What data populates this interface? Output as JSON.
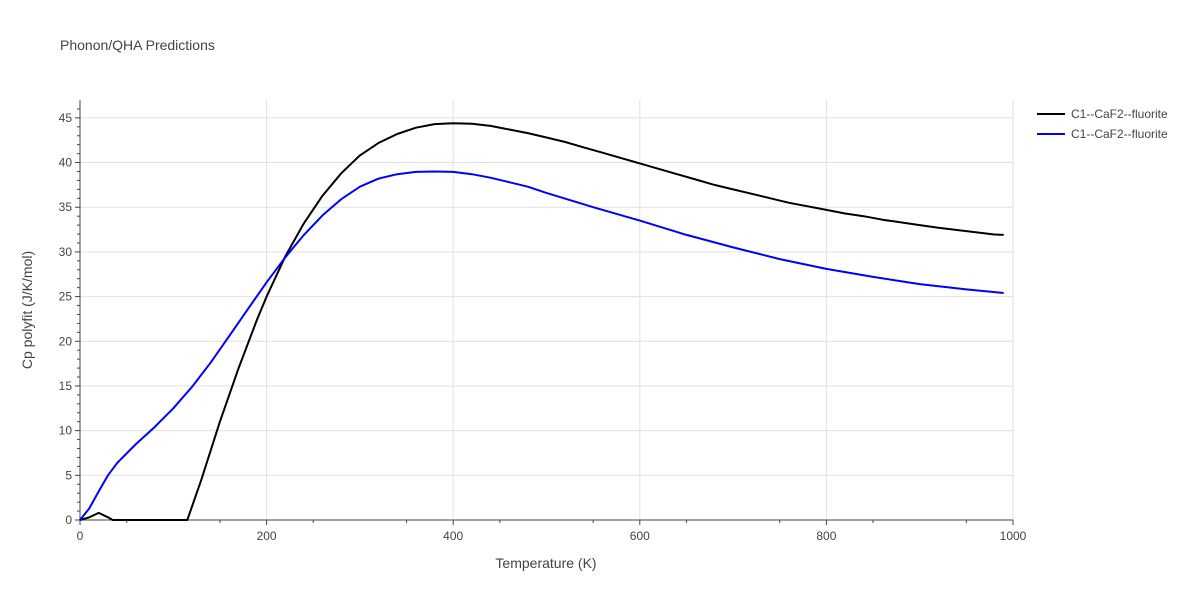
{
  "chart_data": {
    "type": "line",
    "title": "Phonon/QHA Predictions",
    "xlabel": "Temperature (K)",
    "ylabel": "Cp polyfit (J/K/mol)",
    "xlim": [
      0,
      1000
    ],
    "ylim": [
      0,
      47
    ],
    "xticks": [
      0,
      200,
      400,
      600,
      800,
      1000
    ],
    "yticks": [
      0,
      5,
      10,
      15,
      20,
      25,
      30,
      35,
      40,
      45
    ],
    "grid": true,
    "legend_position": "top-right",
    "series": [
      {
        "name": "C1--CaF2--fluorite",
        "color": "#000000",
        "x": [
          0,
          10,
          20,
          30,
          35,
          115,
          130,
          150,
          170,
          190,
          200,
          220,
          240,
          260,
          280,
          300,
          320,
          340,
          360,
          380,
          400,
          420,
          440,
          460,
          480,
          500,
          520,
          540,
          560,
          580,
          600,
          620,
          640,
          660,
          680,
          700,
          720,
          740,
          760,
          780,
          800,
          820,
          840,
          860,
          880,
          900,
          920,
          940,
          960,
          980,
          990
        ],
        "y": [
          0,
          0.3,
          0.8,
          0.3,
          0,
          0,
          4.5,
          11,
          17,
          22.5,
          25,
          29.5,
          33.2,
          36.3,
          38.8,
          40.8,
          42.2,
          43.2,
          43.9,
          44.3,
          44.4,
          44.35,
          44.1,
          43.7,
          43.3,
          42.8,
          42.3,
          41.7,
          41.1,
          40.5,
          39.9,
          39.3,
          38.7,
          38.1,
          37.5,
          37,
          36.5,
          36,
          35.5,
          35.1,
          34.7,
          34.3,
          34,
          33.6,
          33.3,
          33,
          32.7,
          32.45,
          32.2,
          31.95,
          31.9
        ]
      },
      {
        "name": "C1--CaF2--fluorite",
        "color": "#0000ff",
        "x": [
          0,
          10,
          20,
          30,
          40,
          60,
          80,
          100,
          120,
          140,
          160,
          180,
          200,
          220,
          240,
          260,
          280,
          300,
          320,
          340,
          360,
          380,
          400,
          420,
          440,
          460,
          480,
          500,
          550,
          600,
          650,
          700,
          750,
          800,
          850,
          900,
          950,
          990
        ],
        "y": [
          0,
          1.3,
          3.2,
          5,
          6.4,
          8.5,
          10.4,
          12.5,
          14.9,
          17.6,
          20.6,
          23.6,
          26.6,
          29.4,
          31.9,
          34.1,
          35.9,
          37.3,
          38.2,
          38.7,
          38.95,
          39,
          38.95,
          38.7,
          38.3,
          37.8,
          37.3,
          36.6,
          35,
          33.5,
          31.9,
          30.5,
          29.2,
          28.1,
          27.2,
          26.4,
          25.8,
          25.4
        ]
      }
    ]
  }
}
